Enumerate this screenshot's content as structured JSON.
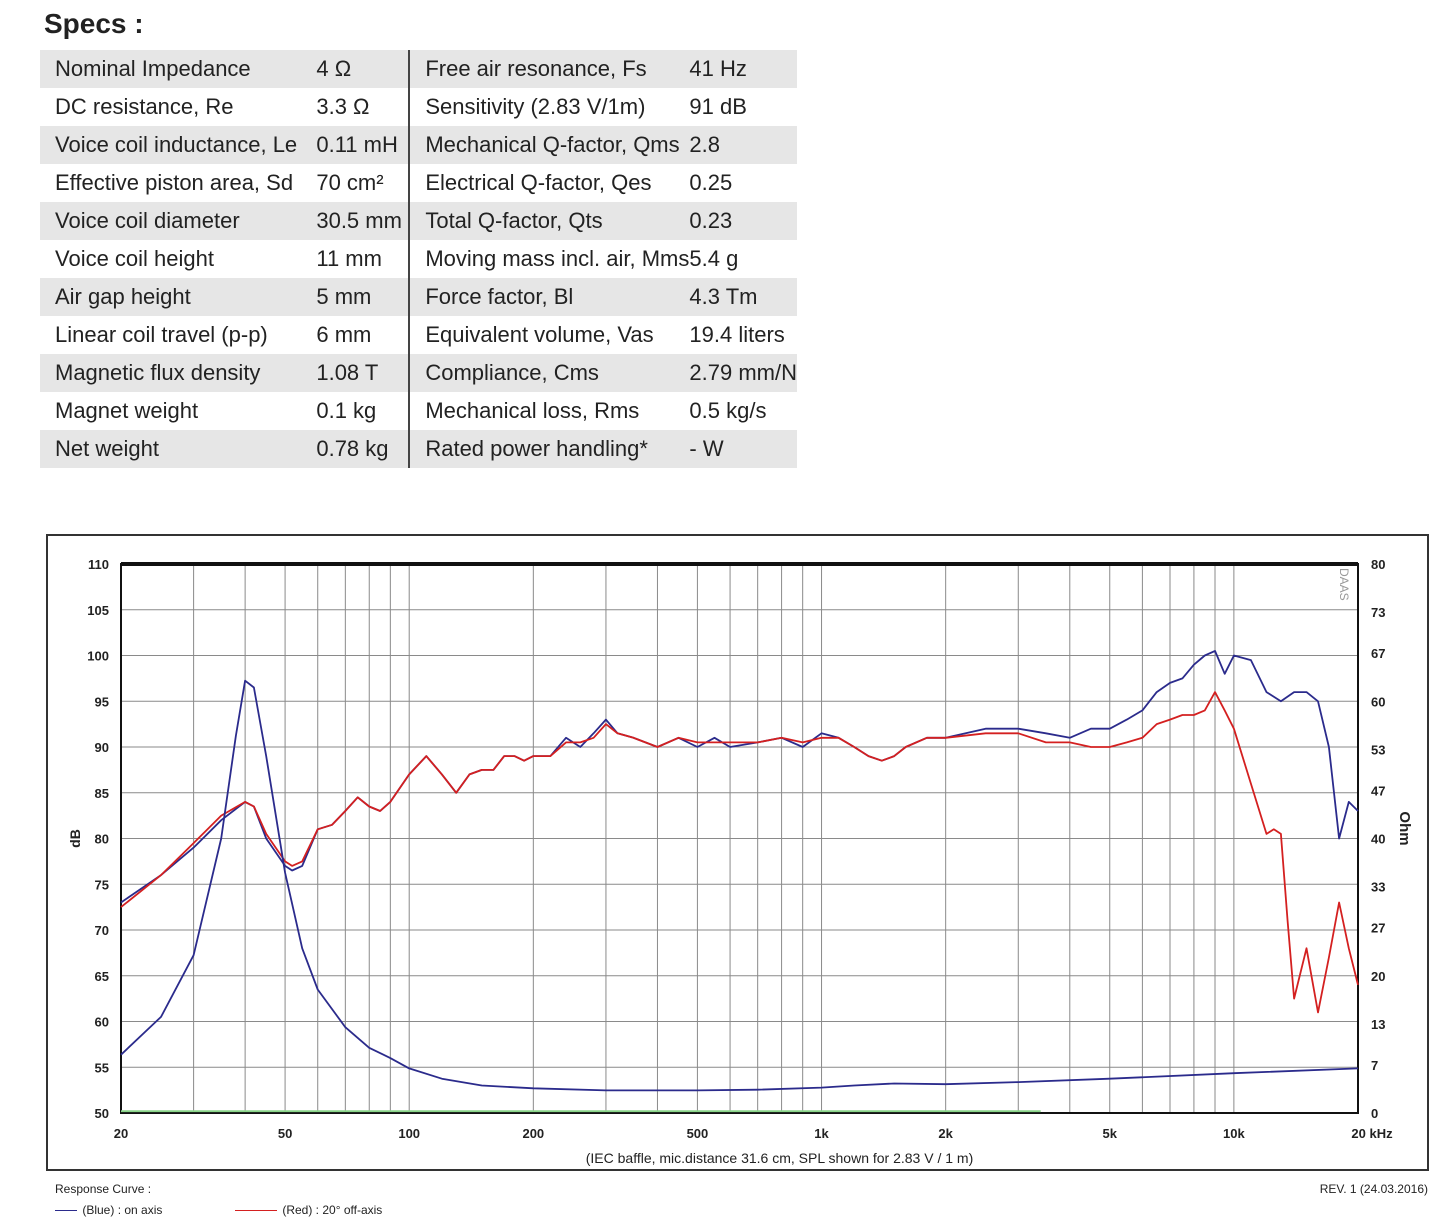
{
  "specs": {
    "title": "Specs :",
    "rows": [
      {
        "label1": "Nominal Impedance",
        "value1": "4 Ω",
        "label2": "Free air resonance, Fs",
        "value2": "41 Hz"
      },
      {
        "label1": "DC resistance, Re",
        "value1": "3.3 Ω",
        "label2": "Sensitivity (2.83 V/1m)",
        "value2": "91 dB"
      },
      {
        "label1": "Voice coil inductance, Le",
        "value1": "0.11 mH",
        "label2": "Mechanical Q-factor, Qms",
        "value2": "2.8"
      },
      {
        "label1": "Effective piston area, Sd",
        "value1": "70 cm²",
        "label2": "Electrical Q-factor, Qes",
        "value2": "0.25"
      },
      {
        "label1": "Voice coil diameter",
        "value1": "30.5 mm",
        "label2": "Total Q-factor, Qts",
        "value2": "0.23"
      },
      {
        "label1": "Voice coil height",
        "value1": "11 mm",
        "label2": "Moving mass incl. air, Mms",
        "value2": "5.4 g"
      },
      {
        "label1": "Air gap height",
        "value1": "5 mm",
        "label2": "Force factor, Bl",
        "value2": "4.3 Tm"
      },
      {
        "label1": "Linear coil travel (p-p)",
        "value1": "6 mm",
        "label2": "Equivalent volume, Vas",
        "value2": "19.4 liters"
      },
      {
        "label1": "Magnetic flux density",
        "value1": "1.08 T",
        "label2": "Compliance, Cms",
        "value2": "2.79 mm/N"
      },
      {
        "label1": "Magnet weight",
        "value1": "0.1 kg",
        "label2": "Mechanical loss, Rms",
        "value2": "0.5 kg/s"
      },
      {
        "label1": "Net weight",
        "value1": "0.78 kg",
        "label2": "Rated power handling*",
        "value2": "- W"
      }
    ]
  },
  "chart_data": {
    "type": "line",
    "x_scale": "log",
    "xlim": [
      20,
      20000
    ],
    "ylim": [
      50,
      110
    ],
    "y2lim": [
      0,
      80
    ],
    "x_ticks": [
      {
        "value": 20,
        "label": "20"
      },
      {
        "value": 50,
        "label": "50"
      },
      {
        "value": 100,
        "label": "100"
      },
      {
        "value": 200,
        "label": "200"
      },
      {
        "value": 500,
        "label": "500"
      },
      {
        "value": 1000,
        "label": "1k"
      },
      {
        "value": 2000,
        "label": "2k"
      },
      {
        "value": 5000,
        "label": "5k"
      },
      {
        "value": 10000,
        "label": "10k"
      },
      {
        "value": 20000,
        "label": "20 kHz"
      }
    ],
    "y_ticks": [
      110,
      105,
      100,
      95,
      90,
      85,
      80,
      75,
      70,
      65,
      60,
      55,
      50
    ],
    "y2_ticks": [
      80,
      73,
      67,
      60,
      53,
      47,
      40,
      33,
      27,
      20,
      13,
      7,
      0
    ],
    "ylabel": "dB",
    "y2label": "Ohm",
    "caption": "(IEC baffle, mic.distance 31.6 cm, SPL shown for 2.83 V / 1 m)",
    "watermark": "DAAS",
    "grid": true,
    "series": [
      {
        "name": "(Blue) : on axis",
        "color": "#2b2b8c",
        "x": [
          20,
          25,
          30,
          35,
          40,
          42,
          45,
          50,
          52,
          55,
          60,
          65,
          70,
          75,
          80,
          85,
          90,
          100,
          110,
          120,
          130,
          140,
          150,
          160,
          170,
          180,
          190,
          200,
          220,
          240,
          260,
          280,
          300,
          320,
          350,
          400,
          450,
          500,
          550,
          600,
          700,
          800,
          900,
          1000,
          1100,
          1200,
          1300,
          1400,
          1500,
          1600,
          1800,
          2000,
          2500,
          3000,
          3500,
          4000,
          4500,
          5000,
          5500,
          6000,
          6500,
          7000,
          7500,
          8000,
          8500,
          9000,
          9500,
          10000,
          11000,
          12000,
          13000,
          14000,
          15000,
          16000,
          17000,
          18000,
          19000,
          20000
        ],
        "y": [
          73,
          76,
          79,
          82,
          84,
          83.5,
          80,
          77,
          76.5,
          77,
          81,
          81.5,
          83,
          84.5,
          83.5,
          83,
          84,
          87,
          89,
          87,
          85,
          87,
          87.5,
          87.5,
          89,
          89,
          88.5,
          89,
          89,
          91,
          90,
          91.5,
          93,
          91.5,
          91,
          90,
          91,
          90,
          91,
          90,
          90.5,
          91,
          90,
          91.5,
          91,
          90,
          89,
          88.5,
          89,
          90,
          91,
          91,
          92,
          92,
          91.5,
          91,
          92,
          92,
          93,
          94,
          96,
          97,
          97.5,
          99,
          100,
          100.5,
          98,
          100,
          99.5,
          96,
          95,
          96,
          96,
          95,
          90,
          80,
          84,
          83
        ]
      },
      {
        "name": "(Red) : 20° off-axis",
        "color": "#d42020",
        "x": [
          20,
          25,
          30,
          35,
          40,
          42,
          45,
          50,
          52,
          55,
          60,
          65,
          70,
          75,
          80,
          85,
          90,
          100,
          110,
          120,
          130,
          140,
          150,
          160,
          170,
          180,
          190,
          200,
          220,
          240,
          260,
          280,
          300,
          320,
          350,
          400,
          450,
          500,
          550,
          600,
          700,
          800,
          900,
          1000,
          1100,
          1200,
          1300,
          1400,
          1500,
          1600,
          1800,
          2000,
          2500,
          3000,
          3500,
          4000,
          4500,
          5000,
          5500,
          6000,
          6500,
          7000,
          7500,
          8000,
          8500,
          9000,
          9500,
          10000,
          11000,
          12000,
          12500,
          13000,
          13500,
          14000,
          15000,
          16000,
          17000,
          18000,
          19000,
          20000
        ],
        "y": [
          72.5,
          76,
          79.5,
          82.5,
          84,
          83.5,
          80.5,
          77.5,
          77,
          77.5,
          81,
          81.5,
          83,
          84.5,
          83.5,
          83,
          84,
          87,
          89,
          87,
          85,
          87,
          87.5,
          87.5,
          89,
          89,
          88.5,
          89,
          89,
          90.5,
          90.5,
          91,
          92.5,
          91.5,
          91,
          90,
          91,
          90.5,
          90.5,
          90.5,
          90.5,
          91,
          90.5,
          91,
          91,
          90,
          89,
          88.5,
          89,
          90,
          91,
          91,
          91.5,
          91.5,
          90.5,
          90.5,
          90,
          90,
          90.5,
          91,
          92.5,
          93,
          93.5,
          93.5,
          94,
          96,
          94,
          92,
          86,
          80.5,
          81,
          80.5,
          71,
          62.5,
          68,
          61,
          67,
          73,
          68,
          64
        ]
      },
      {
        "name": "Impedance",
        "axis": "y2",
        "color": "#2b2b8c",
        "x": [
          20,
          25,
          30,
          35,
          38,
          40,
          42,
          45,
          50,
          55,
          60,
          70,
          80,
          90,
          100,
          120,
          150,
          200,
          300,
          500,
          700,
          1000,
          1200,
          1500,
          2000,
          3000,
          5000,
          10000,
          20000
        ],
        "y": [
          8.5,
          14,
          23,
          40,
          55,
          63,
          62,
          52,
          35,
          24,
          18,
          12.5,
          9.5,
          8,
          6.5,
          5,
          4,
          3.6,
          3.3,
          3.3,
          3.4,
          3.7,
          4,
          4.3,
          4.2,
          4.5,
          5,
          5.8,
          6.5
        ]
      },
      {
        "name": "Baseline",
        "color": "#88d488",
        "x": [
          20,
          3400
        ],
        "y": [
          50.2,
          50.2
        ]
      }
    ]
  },
  "legend": {
    "title": "Response Curve :",
    "items": [
      {
        "label": "(Blue) : on axis",
        "color": "#2b2b8c"
      },
      {
        "label": "(Red) : 20° off-axis",
        "color": "#d42020"
      }
    ]
  },
  "revision": "REV. 1 (24.03.2016)"
}
